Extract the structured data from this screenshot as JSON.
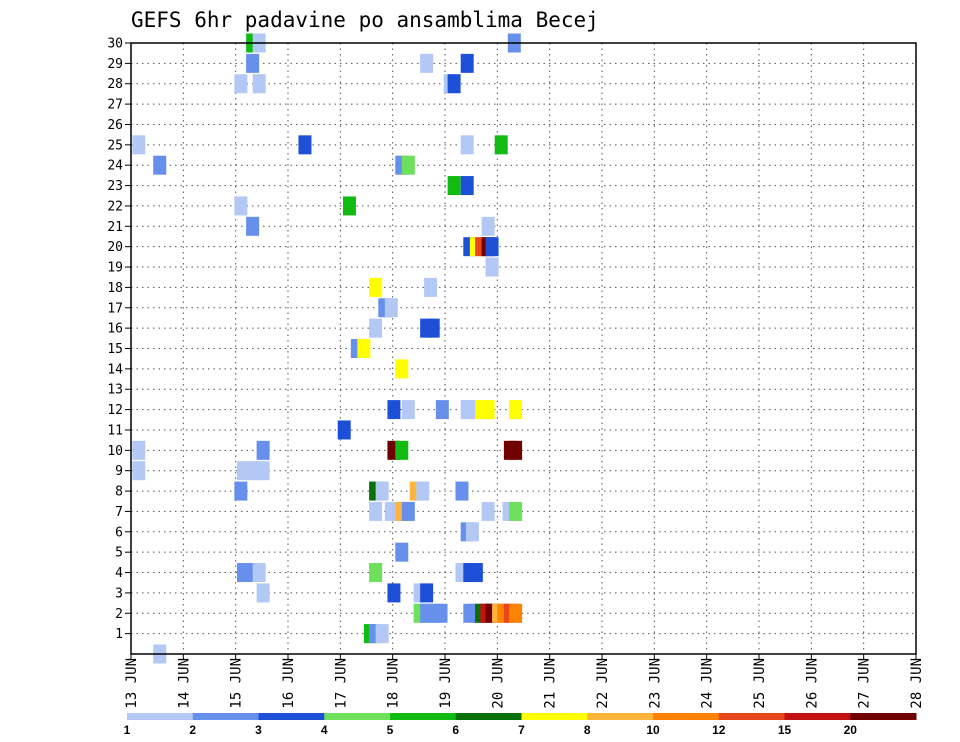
{
  "chart_data": {
    "type": "heatmap",
    "title": "GEFS 6hr padavine po ansamblima Becej",
    "xlabel": "",
    "ylabel": "",
    "x_ticks": [
      "13 JUN",
      "14 JUN",
      "15 JUN",
      "16 JUN",
      "17 JUN",
      "18 JUN",
      "19 JUN",
      "20 JUN",
      "21 JUN",
      "22 JUN",
      "23 JUN",
      "24 JUN",
      "25 JUN",
      "26 JUN",
      "27 JUN",
      "28 JUN"
    ],
    "y_ticks": [
      "1",
      "2",
      "3",
      "4",
      "5",
      "6",
      "7",
      "8",
      "9",
      "10",
      "11",
      "12",
      "13",
      "14",
      "15",
      "16",
      "17",
      "18",
      "19",
      "20",
      "21",
      "22",
      "23",
      "24",
      "25",
      "26",
      "27",
      "28",
      "29",
      "30"
    ],
    "xlim": [
      0,
      60
    ],
    "ylim": [
      0,
      30
    ],
    "grid": true,
    "colorbar": {
      "colors": [
        "#b3c8f5",
        "#6690ec",
        "#1e4fd7",
        "#6ee05c",
        "#11bb11",
        "#087008",
        "#ffff00",
        "#ffb43c",
        "#ff8200",
        "#e8461c",
        "#c41212",
        "#700000"
      ],
      "labels": [
        "1",
        "2",
        "3",
        "4",
        "5",
        "6",
        "7",
        "8",
        "10",
        "12",
        "15",
        "20"
      ]
    },
    "cells": [
      [
        0.1,
        25,
        0
      ],
      [
        0.1,
        10,
        0
      ],
      [
        0.1,
        9,
        0
      ],
      [
        1.7,
        24,
        1
      ],
      [
        1.7,
        0,
        0
      ],
      [
        7.9,
        28,
        0
      ],
      [
        7.9,
        22,
        0
      ],
      [
        7.9,
        8,
        1
      ],
      [
        8.1,
        9,
        0
      ],
      [
        8.1,
        4,
        1
      ],
      [
        8.8,
        30,
        4
      ],
      [
        8.8,
        29,
        1
      ],
      [
        8.8,
        21,
        1
      ],
      [
        8.8,
        9,
        0
      ],
      [
        8.8,
        4,
        1
      ],
      [
        9.3,
        28,
        0
      ],
      [
        9.3,
        30,
        0
      ],
      [
        9.3,
        4,
        0
      ],
      [
        9.6,
        10,
        1
      ],
      [
        9.6,
        9,
        0
      ],
      [
        9.6,
        3,
        0
      ],
      [
        12.8,
        25,
        2
      ],
      [
        15.8,
        11,
        2
      ],
      [
        16.2,
        22,
        4
      ],
      [
        16.8,
        15,
        1
      ],
      [
        17.3,
        15,
        6
      ],
      [
        17.8,
        1,
        4
      ],
      [
        18.2,
        1,
        1
      ],
      [
        18.2,
        18,
        6
      ],
      [
        18.2,
        16,
        0
      ],
      [
        18.2,
        8,
        5
      ],
      [
        18.2,
        7,
        0
      ],
      [
        18.2,
        4,
        3
      ],
      [
        18.7,
        8,
        0
      ],
      [
        18.7,
        1,
        0
      ],
      [
        18.9,
        17,
        1
      ],
      [
        19.4,
        17,
        0
      ],
      [
        19.4,
        7,
        0
      ],
      [
        19.6,
        12,
        2
      ],
      [
        19.6,
        10,
        11
      ],
      [
        19.6,
        3,
        2
      ],
      [
        20.2,
        14,
        6
      ],
      [
        20.2,
        10,
        4
      ],
      [
        20.2,
        7,
        7
      ],
      [
        20.2,
        5,
        1
      ],
      [
        20.2,
        24,
        1
      ],
      [
        20.7,
        24,
        3
      ],
      [
        20.7,
        12,
        0
      ],
      [
        20.7,
        7,
        1
      ],
      [
        21.3,
        8,
        7
      ],
      [
        21.8,
        8,
        0
      ],
      [
        21.6,
        3,
        0
      ],
      [
        21.6,
        2,
        3
      ],
      [
        22.1,
        29,
        0
      ],
      [
        22.1,
        3,
        2
      ],
      [
        22.1,
        2,
        1
      ],
      [
        22.1,
        16,
        2
      ],
      [
        22.6,
        16,
        2
      ],
      [
        22.4,
        18,
        0
      ],
      [
        22.7,
        2,
        1
      ],
      [
        23.2,
        2,
        1
      ],
      [
        23.3,
        12,
        1
      ],
      [
        23.9,
        28,
        0
      ],
      [
        24.2,
        28,
        2
      ],
      [
        24.2,
        23,
        4
      ],
      [
        24.8,
        4,
        0
      ],
      [
        24.8,
        8,
        1
      ],
      [
        25.2,
        29,
        2
      ],
      [
        25.2,
        25,
        0
      ],
      [
        25.2,
        23,
        2
      ],
      [
        25.2,
        6,
        1
      ],
      [
        25.6,
        6,
        0
      ],
      [
        25.2,
        12,
        0
      ],
      [
        25.6,
        12,
        0
      ],
      [
        25.4,
        20,
        2
      ],
      [
        25.9,
        20,
        6
      ],
      [
        26.3,
        20,
        9
      ],
      [
        26.8,
        20,
        11
      ],
      [
        27.1,
        20,
        2
      ],
      [
        27.1,
        19,
        0
      ],
      [
        25.4,
        4,
        2
      ],
      [
        25.9,
        4,
        2
      ],
      [
        25.4,
        2,
        1
      ],
      [
        25.9,
        2,
        1
      ],
      [
        26.3,
        2,
        5
      ],
      [
        26.7,
        2,
        10
      ],
      [
        27.1,
        2,
        11
      ],
      [
        27.6,
        2,
        7
      ],
      [
        28.0,
        2,
        8
      ],
      [
        28.5,
        2,
        9
      ],
      [
        28.9,
        2,
        8
      ],
      [
        26.3,
        12,
        6
      ],
      [
        26.8,
        12,
        6
      ],
      [
        26.8,
        21,
        0
      ],
      [
        26.8,
        7,
        0
      ],
      [
        27.8,
        25,
        4
      ],
      [
        28.8,
        30,
        1
      ],
      [
        28.4,
        7,
        0
      ],
      [
        28.9,
        7,
        3
      ],
      [
        28.9,
        12,
        6
      ],
      [
        28.9,
        10,
        11
      ],
      [
        28.5,
        10,
        11
      ]
    ]
  }
}
